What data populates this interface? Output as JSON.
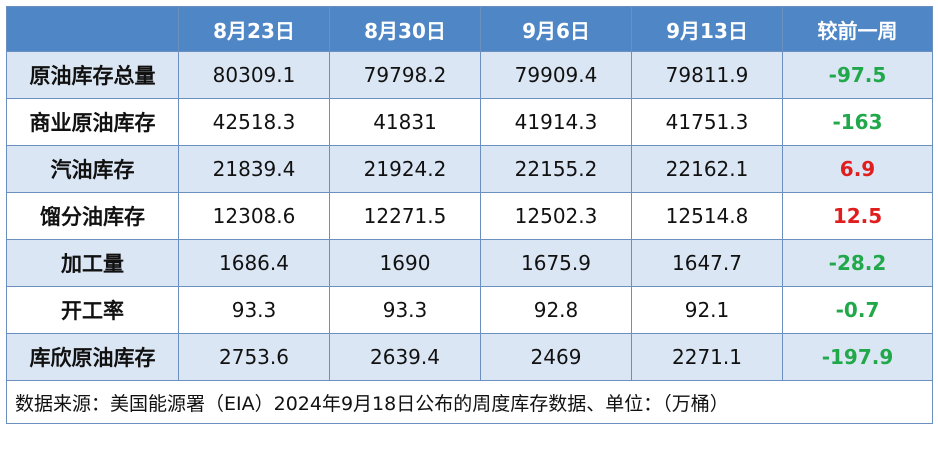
{
  "header": {
    "columns": [
      "8月23日",
      "8月30日",
      "9月6日",
      "9月13日",
      "较前一周"
    ]
  },
  "rows": [
    {
      "label": "原油库存总量",
      "values": [
        "80309.1",
        "79798.2",
        "79909.4",
        "79811.9"
      ],
      "change": "-97.5",
      "change_color": "#21a84a"
    },
    {
      "label": "商业原油库存",
      "values": [
        "42518.3",
        "41831",
        "41914.3",
        "41751.3"
      ],
      "change": "-163",
      "change_color": "#21a84a"
    },
    {
      "label": "汽油库存",
      "values": [
        "21839.4",
        "21924.2",
        "22155.2",
        "22162.1"
      ],
      "change": "6.9",
      "change_color": "#e01e1e"
    },
    {
      "label": "馏分油库存",
      "values": [
        "12308.6",
        "12271.5",
        "12502.3",
        "12514.8"
      ],
      "change": "12.5",
      "change_color": "#e01e1e"
    },
    {
      "label": "加工量",
      "values": [
        "1686.4",
        "1690",
        "1675.9",
        "1647.7"
      ],
      "change": "-28.2",
      "change_color": "#21a84a"
    },
    {
      "label": "开工率",
      "values": [
        "93.3",
        "93.3",
        "92.8",
        "92.1"
      ],
      "change": "-0.7",
      "change_color": "#21a84a"
    },
    {
      "label": "库欣原油库存",
      "values": [
        "2753.6",
        "2639.4",
        "2469",
        "2271.1"
      ],
      "change": "-197.9",
      "change_color": "#21a84a"
    }
  ],
  "footer": {
    "note": "数据来源：美国能源署（EIA）2024年9月18日公布的周度库存数据、单位：（万桶）"
  },
  "colors": {
    "header_bg": "#4f86c6",
    "band_bg": "#dbe6f4",
    "border": "#6b8fbf",
    "decrease": "#21a84a",
    "increase": "#e01e1e"
  }
}
